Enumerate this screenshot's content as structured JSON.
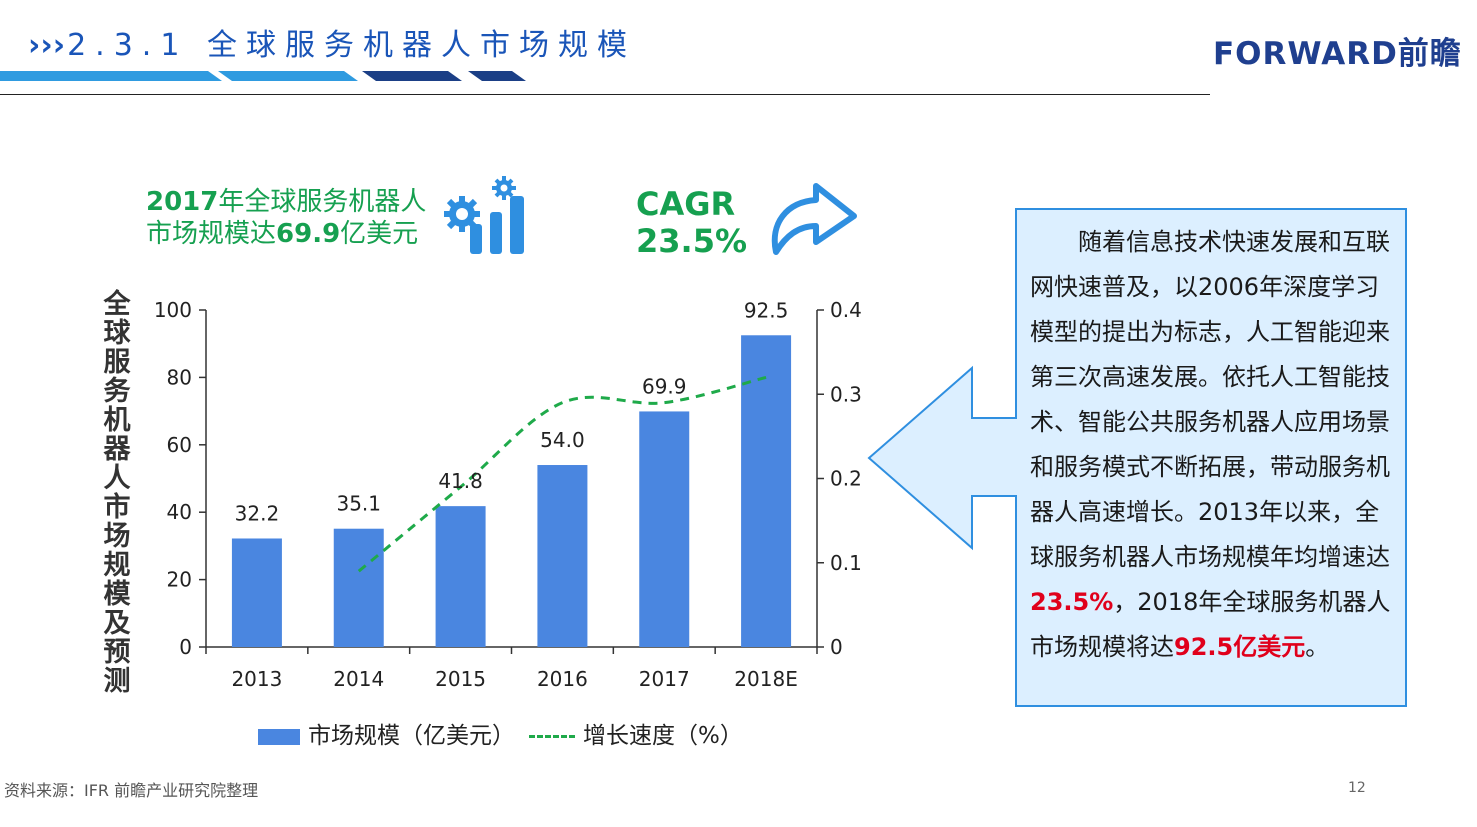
{
  "header": {
    "chevrons": "›››",
    "title": "2.3.1 全球服务机器人市场规模",
    "logo_text": "FORWARD前瞻",
    "accent_color": "#1a55b8"
  },
  "stats": {
    "market_prefix_num": "2017",
    "market_prefix_text": "年全球服务机器人",
    "market_line2_text": "市场规模达",
    "market_value": "69.9",
    "market_unit": "亿美元",
    "cagr_label": "CAGR",
    "cagr_value": "23.5%",
    "icon_gears": "gears-bar-chart-icon",
    "icon_arrow": "curved-arrow-icon"
  },
  "chart_data": {
    "type": "bar",
    "categories": [
      "2013",
      "2014",
      "2015",
      "2016",
      "2017",
      "2018E"
    ],
    "series": [
      {
        "name": "市场规模（亿美元）",
        "type": "bar",
        "axis": "left",
        "values": [
          32.2,
          35.1,
          41.8,
          54.0,
          69.9,
          92.5
        ],
        "labels": [
          "32.2",
          "35.1",
          "41.8",
          "54.0",
          "69.9",
          "92.5"
        ],
        "color": "#4a86e0"
      },
      {
        "name": "增长速度（%）",
        "type": "line",
        "axis": "right",
        "style": "dashed",
        "values": [
          null,
          0.09,
          0.19,
          0.29,
          0.29,
          0.32
        ],
        "color": "#1faa4a"
      }
    ],
    "ylabel": "全球服务机器人市场规模及预测",
    "ylim": [
      0,
      100
    ],
    "yticks": [
      "0",
      "20",
      "40",
      "60",
      "80",
      "100"
    ],
    "y2lim": [
      0,
      0.4
    ],
    "y2ticks": [
      "0",
      "0.1",
      "0.2",
      "0.3",
      "0.4"
    ],
    "grid": false,
    "legend_position": "bottom"
  },
  "legend": {
    "bar_label": "市场规模（亿美元）",
    "line_label": "增长速度（%）"
  },
  "callout": {
    "p1": "随着信息技术快速发展和互联网快速普及，以2006年深度学习模型的提出为标志，人工智能迎来第三次高速发展。依托人工智能技术、智能公共服务机器人应用场景和服务模式不断拓展，带动服务机器人高速增长。2013年以来，全球服务机器人市场规模年均增速达",
    "highlight1": "23.5%",
    "p2": "，2018年全球服务机器人市场规模将达",
    "highlight2": "92.5亿美元",
    "p3": "。"
  },
  "footer": {
    "source": "资料来源：IFR 前瞻产业研究院整理",
    "page": "12"
  }
}
